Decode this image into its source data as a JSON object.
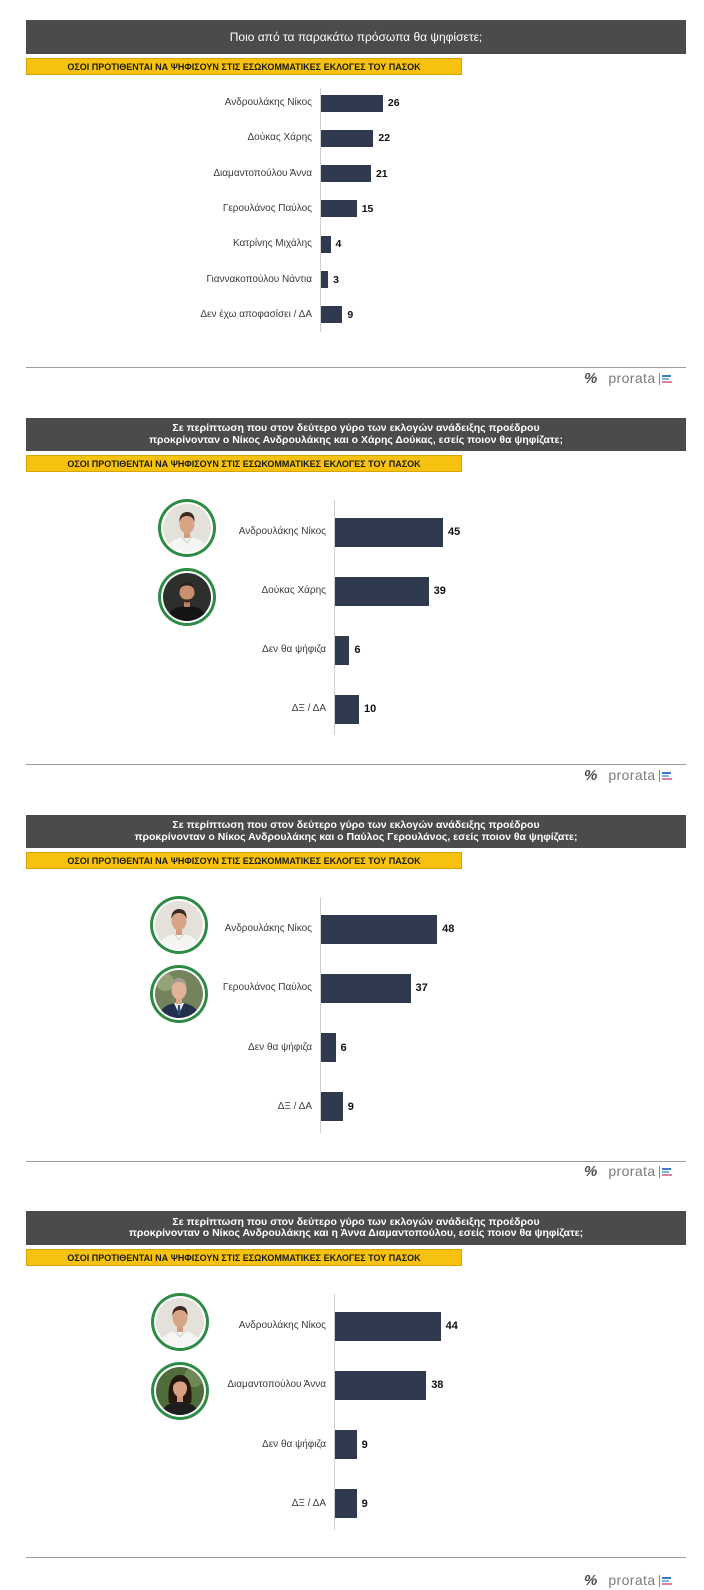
{
  "colors": {
    "header_bg": "#4b4b4b",
    "highlight_bg": "#f6c10f",
    "bar": "#2f3a4f",
    "photo_ring": "#2e8b45",
    "logo_bar_colors": [
      "#3a7cc4",
      "#7bb6e3",
      "#e07fa6"
    ]
  },
  "footer": {
    "logo_symbol": "%",
    "logo_text": "prorata",
    "logo_icon": "bars-icon"
  },
  "chart_data": [
    {
      "type": "bar",
      "horizontal": true,
      "grid": false,
      "title": "Ποιο από τα παρακάτω πρόσωπα θα ψηφίσετε;",
      "subtitle": "ΟΣΟΙ ΠΡΟΤΙΘΕΝΤΑΙ ΝΑ ΨΗΦΙΣΟΥΝ ΣΤΙΣ ΕΣΩΚΟΜΜΑΤΙΚΕΣ ΕΚΛΟΓΕΣ ΤΟΥ ΠΑΣΟΚ",
      "categories": [
        "Ανδρουλάκης Νίκος",
        "Δούκας Χάρης",
        "Διαμαντοπούλου Άννα",
        "Γερουλάνος Παύλος",
        "Κατρίνης Μιχάλης",
        "Γιαννακοπούλου Νάντια",
        "Δεν έχω αποφασίσει / ΔΑ"
      ],
      "values": [
        26,
        22,
        21,
        15,
        4,
        3,
        9
      ]
    },
    {
      "type": "bar",
      "horizontal": true,
      "grid": false,
      "title": "Σε περίπτωση που στον δεύτερο γύρο των εκλογών ανάδειξης προέδρου\nπροκρίνονταν ο Νίκος Ανδρουλάκης και ο Χάρης Δούκας, εσείς ποιον θα ψηφίζατε;",
      "subtitle": "ΟΣΟΙ ΠΡΟΤΙΘΕΝΤΑΙ ΝΑ ΨΗΦΙΣΟΥΝ ΣΤΙΣ ΕΣΩΚΟΜΜΑΤΙΚΕΣ ΕΚΛΟΓΕΣ ΤΟΥ ΠΑΣΟΚ",
      "categories": [
        "Ανδρουλάκης Νίκος",
        "Δούκας Χάρης",
        "Δεν θα ψήφιζα",
        "ΔΞ / ΔΑ"
      ],
      "values": [
        45,
        39,
        6,
        10
      ]
    },
    {
      "type": "bar",
      "horizontal": true,
      "grid": false,
      "title": "Σε περίπτωση που στον δεύτερο γύρο των εκλογών ανάδειξης προέδρου\nπροκρίνονταν ο Νίκος Ανδρουλάκης και ο Παύλος Γερουλάνος, εσείς ποιον θα ψηφίζατε;",
      "subtitle": "ΟΣΟΙ ΠΡΟΤΙΘΕΝΤΑΙ ΝΑ ΨΗΦΙΣΟΥΝ ΣΤΙΣ ΕΣΩΚΟΜΜΑΤΙΚΕΣ ΕΚΛΟΓΕΣ ΤΟΥ ΠΑΣΟΚ",
      "categories": [
        "Ανδρουλάκης Νίκος",
        "Γερουλάνος Παύλος",
        "Δεν θα ψήφιζα",
        "ΔΞ / ΔΑ"
      ],
      "values": [
        48,
        37,
        6,
        9
      ]
    },
    {
      "type": "bar",
      "horizontal": true,
      "grid": false,
      "title": "Σε περίπτωση που στον δεύτερο γύρο των εκλογών ανάδειξης προέδρου\nπροκρίνονταν ο Νίκος Ανδρουλάκης και η Άννα Διαμαντοπούλου, εσείς ποιον θα ψηφίζατε;",
      "subtitle": "ΟΣΟΙ ΠΡΟΤΙΘΕΝΤΑΙ ΝΑ ΨΗΦΙΣΟΥΝ ΣΤΙΣ ΕΣΩΚΟΜΜΑΤΙΚΕΣ ΕΚΛΟΓΕΣ ΤΟΥ ΠΑΣΟΚ",
      "categories": [
        "Ανδρουλάκης Νίκος",
        "Διαμαντοπούλου Άννα",
        "Δεν θα ψήφιζα",
        "ΔΞ / ΔΑ"
      ],
      "values": [
        44,
        38,
        9,
        9
      ]
    }
  ]
}
